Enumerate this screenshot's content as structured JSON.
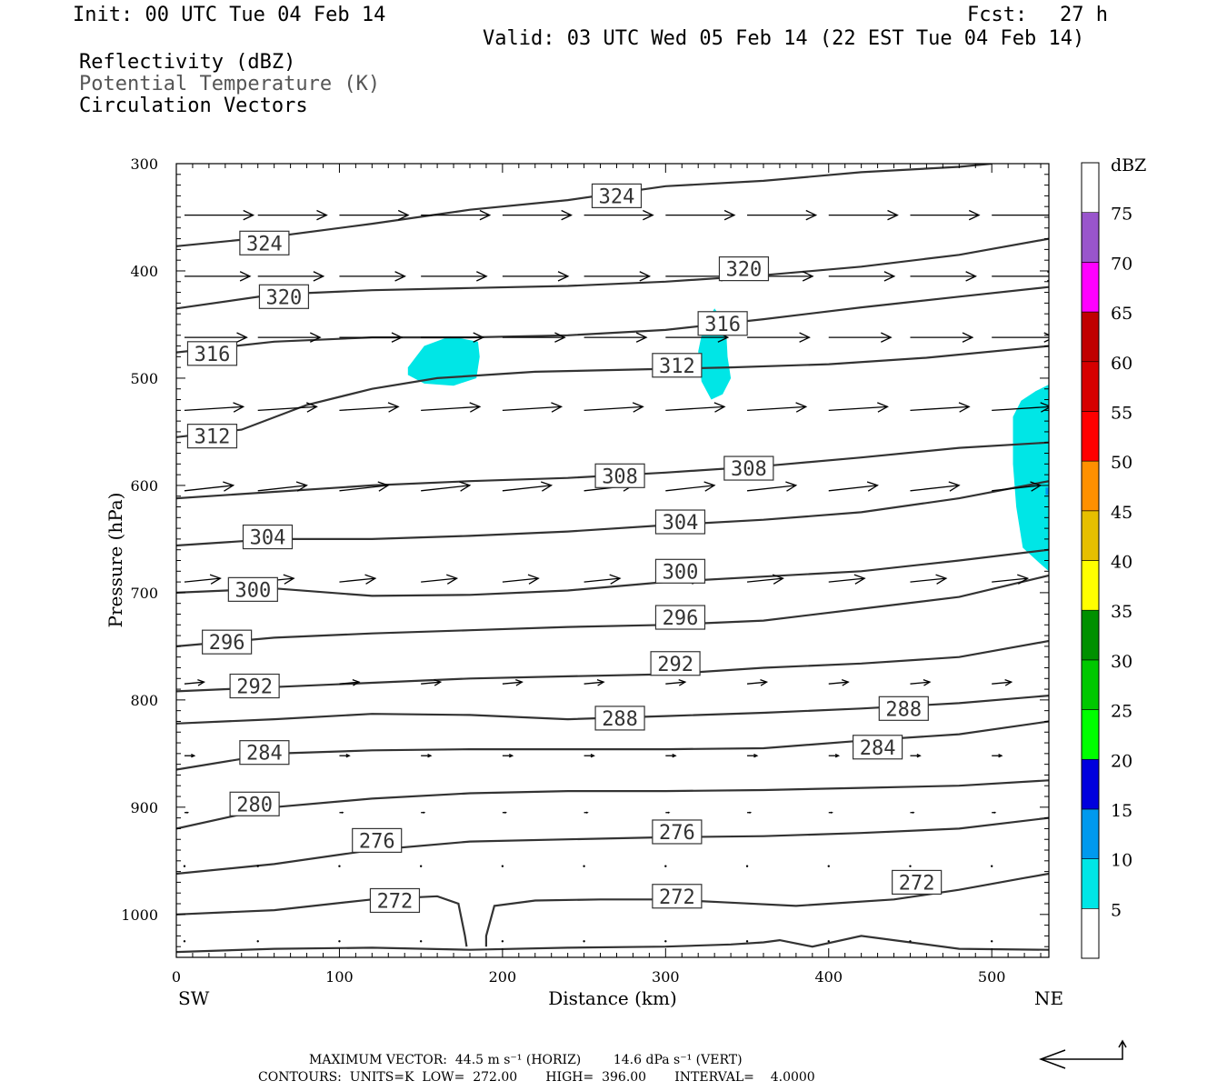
{
  "header": {
    "init": "Init: 00 UTC Tue 04 Feb 14",
    "fcst_label": "Fcst:",
    "fcst_hours": "27 h",
    "valid": "Valid: 03 UTC Wed 05 Feb 14 (22 EST Tue 04 Feb 14)",
    "field_1": "Reflectivity (dBZ)",
    "field_2": "Potential Temperature (K)",
    "field_3": "Circulation Vectors"
  },
  "footer": {
    "max_vector": "MAXIMUM VECTOR:  44.5 m s⁻¹ (HORIZ)        14.6 dPa s⁻¹ (VERT)",
    "contours": "CONTOURS:  UNITS=K  LOW=  272.00       HIGH=  396.00       INTERVAL=    4.0000"
  },
  "chart_data": {
    "type": "contour",
    "xlabel": "Distance (km)",
    "ylabel": "Pressure (hPa)",
    "xlim": [
      0,
      535
    ],
    "ylim": [
      300,
      1040
    ],
    "x_ticks": [
      0,
      100,
      200,
      300,
      400,
      500
    ],
    "y_ticks": [
      300,
      400,
      500,
      600,
      700,
      800,
      900,
      1000
    ],
    "x_left_label": "SW",
    "x_right_label": "NE",
    "colorbar": {
      "unit": "dBZ",
      "levels": [
        5,
        10,
        15,
        20,
        25,
        30,
        35,
        40,
        45,
        50,
        55,
        60,
        65,
        70,
        75
      ],
      "colors": [
        "#ffffff",
        "#00e6e6",
        "#0099ee",
        "#0000dd",
        "#00ff00",
        "#00c800",
        "#009000",
        "#ffff00",
        "#e6bf00",
        "#ff9000",
        "#ff0000",
        "#d60000",
        "#c00000",
        "#ff00ff",
        "#9955cc",
        "#ffffff"
      ]
    },
    "theta_contours": [
      {
        "value": "324",
        "points": [
          [
            0,
            377
          ],
          [
            60,
            368
          ],
          [
            120,
            356
          ],
          [
            180,
            343
          ],
          [
            240,
            334
          ],
          [
            300,
            321
          ],
          [
            360,
            316
          ],
          [
            420,
            308
          ],
          [
            480,
            303
          ],
          [
            500,
            300
          ]
        ],
        "labels": [
          [
            270,
            330
          ],
          [
            54,
            374
          ]
        ]
      },
      {
        "value": "320",
        "points": [
          [
            0,
            435
          ],
          [
            60,
            422
          ],
          [
            120,
            418
          ],
          [
            180,
            416
          ],
          [
            240,
            414
          ],
          [
            300,
            410
          ],
          [
            360,
            404
          ],
          [
            420,
            396
          ],
          [
            480,
            385
          ],
          [
            535,
            370
          ]
        ],
        "labels": [
          [
            66,
            424
          ],
          [
            348,
            398
          ]
        ]
      },
      {
        "value": "316",
        "points": [
          [
            0,
            476
          ],
          [
            60,
            466
          ],
          [
            120,
            462
          ],
          [
            180,
            462
          ],
          [
            240,
            460
          ],
          [
            300,
            455
          ],
          [
            360,
            445
          ],
          [
            420,
            434
          ],
          [
            480,
            424
          ],
          [
            535,
            415
          ]
        ],
        "labels": [
          [
            22,
            477
          ],
          [
            335,
            449
          ]
        ]
      },
      {
        "value": "312",
        "points": [
          [
            0,
            555
          ],
          [
            40,
            548
          ],
          [
            80,
            525
          ],
          [
            120,
            510
          ],
          [
            160,
            500
          ],
          [
            220,
            494
          ],
          [
            280,
            492
          ],
          [
            340,
            490
          ],
          [
            400,
            487
          ],
          [
            460,
            481
          ],
          [
            535,
            470
          ]
        ],
        "labels": [
          [
            22,
            554
          ],
          [
            307,
            488
          ]
        ]
      },
      {
        "value": "308",
        "points": [
          [
            0,
            612
          ],
          [
            60,
            606
          ],
          [
            120,
            600
          ],
          [
            180,
            596
          ],
          [
            240,
            593
          ],
          [
            300,
            588
          ],
          [
            360,
            582
          ],
          [
            420,
            574
          ],
          [
            480,
            565
          ],
          [
            535,
            560
          ]
        ],
        "labels": [
          [
            272,
            591
          ],
          [
            351,
            584
          ]
        ]
      },
      {
        "value": "304",
        "points": [
          [
            0,
            656
          ],
          [
            60,
            650
          ],
          [
            120,
            650
          ],
          [
            180,
            647
          ],
          [
            240,
            643
          ],
          [
            300,
            637
          ],
          [
            360,
            632
          ],
          [
            420,
            625
          ],
          [
            480,
            612
          ],
          [
            535,
            596
          ]
        ],
        "labels": [
          [
            56,
            648
          ],
          [
            309,
            634
          ]
        ]
      },
      {
        "value": "300",
        "points": [
          [
            0,
            700
          ],
          [
            60,
            696
          ],
          [
            120,
            703
          ],
          [
            180,
            702
          ],
          [
            240,
            698
          ],
          [
            300,
            690
          ],
          [
            360,
            685
          ],
          [
            420,
            680
          ],
          [
            480,
            670
          ],
          [
            535,
            660
          ]
        ],
        "labels": [
          [
            47,
            697
          ],
          [
            309,
            680
          ]
        ]
      },
      {
        "value": "296",
        "points": [
          [
            0,
            750
          ],
          [
            60,
            742
          ],
          [
            120,
            738
          ],
          [
            180,
            735
          ],
          [
            240,
            732
          ],
          [
            300,
            730
          ],
          [
            360,
            726
          ],
          [
            420,
            715
          ],
          [
            480,
            704
          ],
          [
            535,
            684
          ]
        ],
        "labels": [
          [
            31,
            746
          ],
          [
            309,
            723
          ]
        ]
      },
      {
        "value": "292",
        "points": [
          [
            0,
            792
          ],
          [
            60,
            788
          ],
          [
            120,
            784
          ],
          [
            180,
            780
          ],
          [
            240,
            778
          ],
          [
            300,
            776
          ],
          [
            360,
            770
          ],
          [
            420,
            766
          ],
          [
            480,
            760
          ],
          [
            535,
            745
          ]
        ],
        "labels": [
          [
            48,
            787
          ],
          [
            306,
            766
          ]
        ]
      },
      {
        "value": "288",
        "points": [
          [
            0,
            822
          ],
          [
            60,
            818
          ],
          [
            120,
            813
          ],
          [
            180,
            814
          ],
          [
            240,
            818
          ],
          [
            300,
            815
          ],
          [
            360,
            812
          ],
          [
            420,
            808
          ],
          [
            480,
            803
          ],
          [
            535,
            796
          ]
        ],
        "labels": [
          [
            272,
            817
          ],
          [
            446,
            808
          ]
        ]
      },
      {
        "value": "284",
        "points": [
          [
            0,
            865
          ],
          [
            60,
            850
          ],
          [
            120,
            847
          ],
          [
            180,
            846
          ],
          [
            240,
            846
          ],
          [
            300,
            846
          ],
          [
            360,
            845
          ],
          [
            420,
            838
          ],
          [
            480,
            832
          ],
          [
            535,
            820
          ]
        ],
        "labels": [
          [
            54,
            849
          ],
          [
            430,
            844
          ]
        ]
      },
      {
        "value": "280",
        "points": [
          [
            0,
            920
          ],
          [
            60,
            900
          ],
          [
            120,
            892
          ],
          [
            180,
            887
          ],
          [
            240,
            885
          ],
          [
            300,
            885
          ],
          [
            360,
            884
          ],
          [
            420,
            882
          ],
          [
            480,
            880
          ],
          [
            535,
            875
          ]
        ],
        "labels": [
          [
            48,
            897
          ]
        ]
      },
      {
        "value": "276",
        "points": [
          [
            0,
            962
          ],
          [
            60,
            953
          ],
          [
            120,
            940
          ],
          [
            180,
            932
          ],
          [
            240,
            930
          ],
          [
            300,
            928
          ],
          [
            360,
            927
          ],
          [
            420,
            924
          ],
          [
            480,
            920
          ],
          [
            535,
            910
          ]
        ],
        "labels": [
          [
            123,
            931
          ],
          [
            307,
            923
          ]
        ]
      },
      {
        "value": "272",
        "points": [
          [
            0,
            1000
          ],
          [
            60,
            996
          ],
          [
            120,
            986
          ],
          [
            160,
            983
          ],
          [
            173,
            990
          ],
          [
            177,
            1020
          ],
          [
            178,
            1030
          ]
        ],
        "labels": [
          [
            134,
            987
          ]
        ]
      },
      {
        "value": "272",
        "points": [
          [
            190,
            1030
          ],
          [
            190,
            1020
          ],
          [
            195,
            992
          ],
          [
            220,
            987
          ],
          [
            260,
            986
          ],
          [
            300,
            986
          ],
          [
            340,
            989
          ],
          [
            380,
            992
          ],
          [
            400,
            990
          ],
          [
            440,
            986
          ],
          [
            480,
            977
          ],
          [
            520,
            966
          ],
          [
            535,
            962
          ]
        ],
        "labels": [
          [
            307,
            983
          ],
          [
            454,
            970
          ]
        ]
      },
      {
        "value": "",
        "points": [
          [
            0,
            1035
          ],
          [
            60,
            1032
          ],
          [
            120,
            1031
          ],
          [
            180,
            1033
          ],
          [
            240,
            1031
          ],
          [
            300,
            1030
          ],
          [
            340,
            1028
          ],
          [
            360,
            1026
          ],
          [
            370,
            1024
          ],
          [
            390,
            1030
          ],
          [
            420,
            1020
          ],
          [
            450,
            1026
          ],
          [
            480,
            1032
          ],
          [
            535,
            1033
          ]
        ],
        "labels": []
      }
    ],
    "reflectivity_areas": [
      {
        "dbz": 5,
        "polygon": [
          [
            142,
            490
          ],
          [
            152,
            470
          ],
          [
            168,
            461
          ],
          [
            185,
            466
          ],
          [
            186,
            480
          ],
          [
            184,
            500
          ],
          [
            170,
            507
          ],
          [
            152,
            505
          ],
          [
            142,
            497
          ]
        ]
      },
      {
        "dbz": 5,
        "polygon": [
          [
            323,
            453
          ],
          [
            330,
            435
          ],
          [
            337,
            450
          ],
          [
            338,
            480
          ],
          [
            340,
            500
          ],
          [
            335,
            515
          ],
          [
            328,
            520
          ],
          [
            322,
            503
          ],
          [
            320,
            475
          ]
        ]
      },
      {
        "dbz": 5,
        "polygon": [
          [
            513,
            536
          ],
          [
            518,
            521
          ],
          [
            527,
            512
          ],
          [
            535,
            506
          ],
          [
            535,
            680
          ],
          [
            529,
            672
          ],
          [
            519,
            658
          ],
          [
            515,
            620
          ],
          [
            513,
            580
          ]
        ]
      }
    ],
    "vector_rows": [
      {
        "p": 348,
        "u": 42,
        "w": 0
      },
      {
        "p": 405,
        "u": 40,
        "w": 0
      },
      {
        "p": 462,
        "u": 38,
        "w": 0
      },
      {
        "p": 530,
        "u": 36,
        "w": -4
      },
      {
        "p": 605,
        "u": 30,
        "w": -6
      },
      {
        "p": 690,
        "u": 22,
        "w": -4
      },
      {
        "p": 785,
        "u": 12,
        "w": -2
      },
      {
        "p": 852,
        "u": 6,
        "w": 0
      },
      {
        "p": 905,
        "u": 2,
        "w": 0
      },
      {
        "p": 955,
        "u": 1,
        "w": 0
      },
      {
        "p": 1025,
        "u": 1,
        "w": 0
      }
    ],
    "vector_xs": [
      5,
      50,
      100,
      150,
      200,
      250,
      300,
      350,
      400,
      450,
      500
    ]
  }
}
